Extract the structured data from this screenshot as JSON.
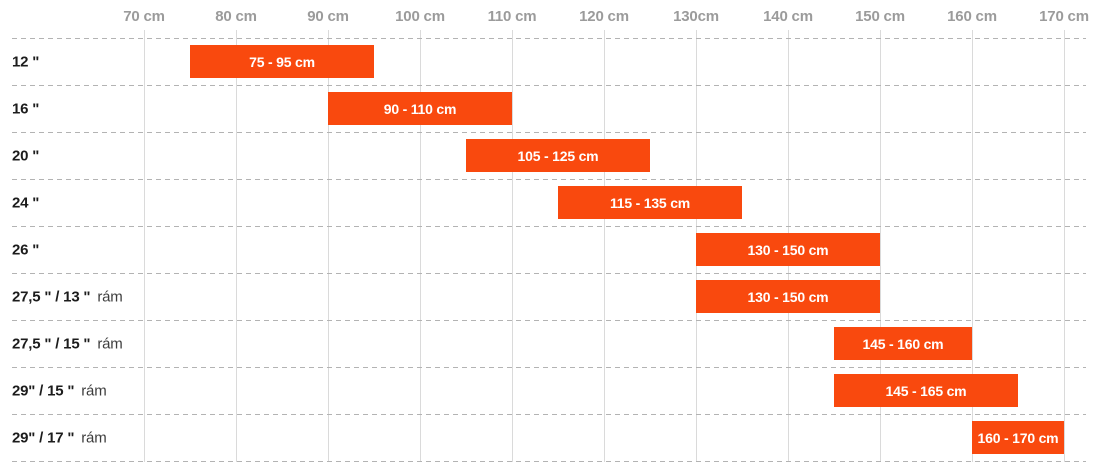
{
  "chart_data": {
    "type": "bar",
    "subtype": "horizontal-range",
    "title": "",
    "xlabel": "",
    "ylabel": "",
    "x_axis": {
      "unit": "cm",
      "min": 70,
      "max": 170,
      "step": 10,
      "tick_values": [
        70,
        80,
        90,
        100,
        110,
        120,
        130,
        140,
        150,
        160,
        170
      ],
      "tick_labels": [
        "70 cm",
        "80 cm",
        "90 cm",
        "100 cm",
        "110 cm",
        "120 cm",
        "130cm",
        "140 cm",
        "150 cm",
        "160 cm",
        "170 cm"
      ]
    },
    "grid": "vertical-solid-horizontal-dashed",
    "legend": "none",
    "rows": [
      {
        "label": "12 \"",
        "suffix": "",
        "range": [
          75,
          95
        ],
        "bar_label": "75 - 95 cm"
      },
      {
        "label": "16 \"",
        "suffix": "",
        "range": [
          90,
          110
        ],
        "bar_label": "90 - 110 cm"
      },
      {
        "label": "20 \"",
        "suffix": "",
        "range": [
          105,
          125
        ],
        "bar_label": "105 - 125 cm"
      },
      {
        "label": "24 \"",
        "suffix": "",
        "range": [
          115,
          135
        ],
        "bar_label": "115 - 135 cm"
      },
      {
        "label": "26 \"",
        "suffix": "",
        "range": [
          130,
          150
        ],
        "bar_label": "130 - 150 cm"
      },
      {
        "label": "27,5 \" / 13 \"",
        "suffix": "rám",
        "range": [
          130,
          150
        ],
        "bar_label": "130 - 150 cm"
      },
      {
        "label": "27,5 \" / 15 \"",
        "suffix": "rám",
        "range": [
          145,
          160
        ],
        "bar_label": "145 - 160 cm"
      },
      {
        "label": "29\" / 15 \"",
        "suffix": "rám",
        "range": [
          145,
          165
        ],
        "bar_label": "145 - 165 cm"
      },
      {
        "label": "29\" / 17 \"",
        "suffix": "rám",
        "range": [
          160,
          170
        ],
        "bar_label": "160 - 170 cm"
      }
    ],
    "colors": {
      "bar": "#F9490E",
      "bar_text": "#FFFFFF",
      "axis_label": "#9B9B9B",
      "row_label": "#1C1C1C",
      "row_suffix": "#3D3D3D",
      "gridline": "#DADADA",
      "dashed_line": "#B3B3B3",
      "background": "#FFFFFF"
    }
  }
}
